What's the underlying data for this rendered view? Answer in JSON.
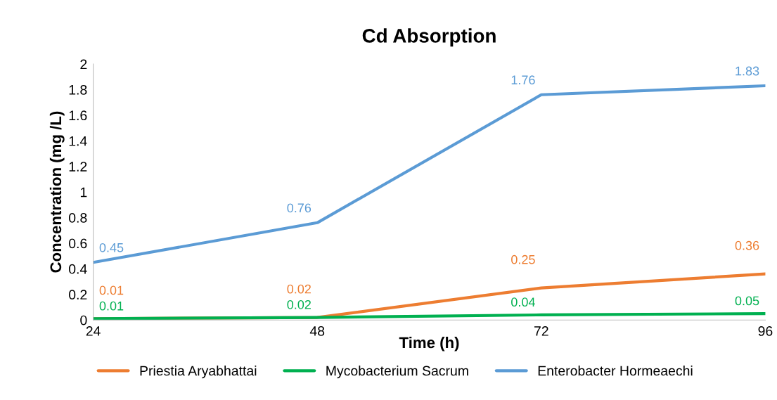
{
  "chart_data": {
    "type": "line",
    "title": "Cd Absorption",
    "xlabel": "Time (h)",
    "ylabel": "Concentration (mg /L)",
    "x": [
      24,
      48,
      72,
      96
    ],
    "series": [
      {
        "name": "Priestia Aryabhattai",
        "color": "#ed7d31",
        "values": [
          0.01,
          0.02,
          0.25,
          0.36
        ]
      },
      {
        "name": "Mycobacterium Sacrum",
        "color": "#00b050",
        "values": [
          0.01,
          0.02,
          0.04,
          0.05
        ]
      },
      {
        "name": "Enterobacter Hormeaechi",
        "color": "#5b9bd5",
        "values": [
          0.45,
          0.76,
          1.76,
          1.83
        ]
      }
    ],
    "xlim": [
      24,
      96
    ],
    "xticks": [
      24,
      48,
      72,
      96
    ],
    "ylim": [
      0,
      2
    ],
    "yticks": [
      0,
      0.2,
      0.4,
      0.6,
      0.8,
      1,
      1.2,
      1.4,
      1.6,
      1.8,
      2
    ],
    "grid": false,
    "legend": "bottom",
    "data_labels": true,
    "marker": "none",
    "line_style": "solid"
  }
}
